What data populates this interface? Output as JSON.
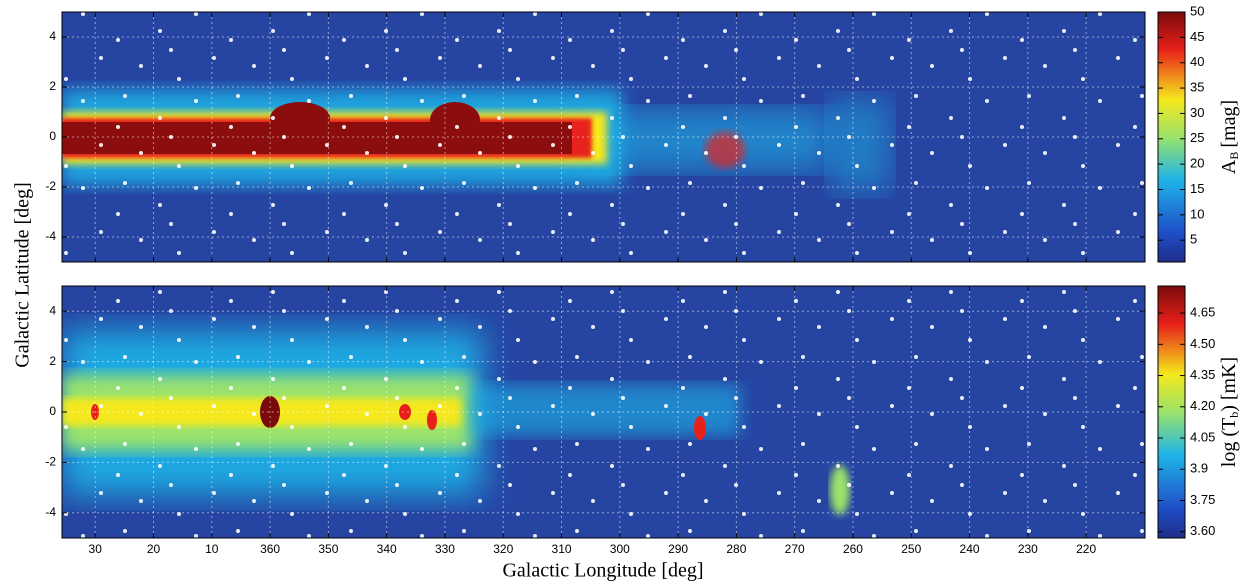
{
  "chart_data": [
    {
      "type": "heatmap",
      "y_label": "Galactic Latitude [deg]",
      "xlim": [
        35.7,
        -150.1
      ],
      "ylim": [
        -5,
        5
      ],
      "yticks": [
        -4,
        -2,
        0,
        2,
        4
      ],
      "clim": [
        0.7,
        50
      ],
      "cticks": [
        5,
        10,
        15,
        20,
        25,
        30,
        35,
        40,
        45,
        50
      ],
      "colorbar_label": {
        "main": "A",
        "sub": "B",
        "unit": "[mag]"
      },
      "colormap": "jet",
      "grid": true
    },
    {
      "type": "heatmap",
      "x_label": "Galactic Longitude [deg]",
      "xlim": [
        35.7,
        -150.1
      ],
      "xticks": [
        30,
        20,
        10,
        {
          "value": 0,
          "label": "360"
        },
        {
          "value": -10,
          "label": "350"
        },
        {
          "value": -20,
          "label": "340"
        },
        {
          "value": -30,
          "label": "330"
        },
        {
          "value": -40,
          "label": "320"
        },
        {
          "value": -50,
          "label": "310"
        },
        {
          "value": -60,
          "label": "300"
        },
        {
          "value": -70,
          "label": "290"
        },
        {
          "value": -80,
          "label": "280"
        },
        {
          "value": -90,
          "label": "270"
        },
        {
          "value": -100,
          "label": "260"
        },
        {
          "value": -110,
          "label": "250"
        },
        {
          "value": -120,
          "label": "240"
        },
        {
          "value": -130,
          "label": "230"
        },
        {
          "value": -140,
          "label": "220"
        }
      ],
      "ylim": [
        -5,
        5
      ],
      "yticks": [
        -4,
        -2,
        0,
        2,
        4
      ],
      "clim": [
        3.57,
        4.78
      ],
      "cticks": [
        {
          "value": 3.6,
          "label": "3.60"
        },
        3.75,
        3.9,
        4.05,
        {
          "value": 4.2,
          "label": "4.20"
        },
        4.35,
        {
          "value": 4.5,
          "label": "4.50"
        },
        4.65
      ],
      "colorbar_label": {
        "main": "log (T",
        "sub": "b",
        "unit": ") [mK]"
      },
      "colormap": "jet",
      "grid": true
    }
  ]
}
